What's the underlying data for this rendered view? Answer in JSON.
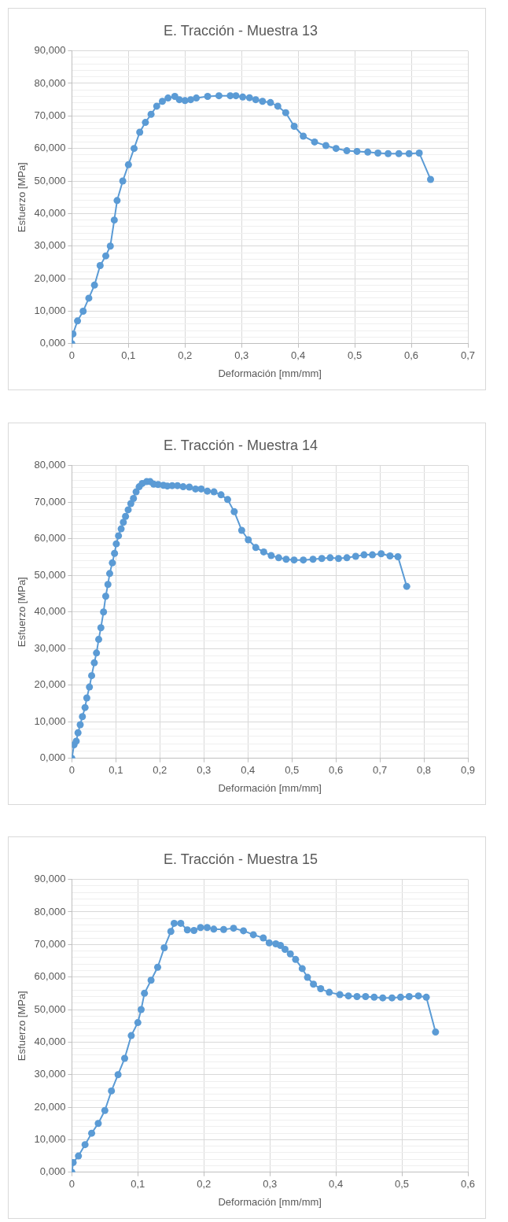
{
  "chart_data": [
    {
      "type": "line",
      "title": "E. Tracción - Muestra 13",
      "xlabel": "Deformación [mm/mm]",
      "ylabel": "Esfuerzo [MPa]",
      "marker": "circle",
      "grid": true,
      "legend": false,
      "xlim": [
        0,
        0.7
      ],
      "xticks": [
        {
          "value": 0,
          "label": "0"
        },
        {
          "value": 0.1,
          "label": "0,1"
        },
        {
          "value": 0.2,
          "label": "0,2"
        },
        {
          "value": 0.3,
          "label": "0,3"
        },
        {
          "value": 0.4,
          "label": "0,4"
        },
        {
          "value": 0.5,
          "label": "0,5"
        },
        {
          "value": 0.6,
          "label": "0,6"
        },
        {
          "value": 0.7,
          "label": "0,7"
        }
      ],
      "ylim": [
        0,
        90
      ],
      "yticks": [
        {
          "value": 0,
          "label": "0,000"
        },
        {
          "value": 2,
          "label": null
        },
        {
          "value": 4,
          "label": null
        },
        {
          "value": 6,
          "label": null
        },
        {
          "value": 8,
          "label": null
        },
        {
          "value": 10,
          "label": "10,000"
        },
        {
          "value": 12,
          "label": null
        },
        {
          "value": 14,
          "label": null
        },
        {
          "value": 16,
          "label": null
        },
        {
          "value": 18,
          "label": null
        },
        {
          "value": 20,
          "label": "20,000"
        },
        {
          "value": 22,
          "label": null
        },
        {
          "value": 24,
          "label": null
        },
        {
          "value": 26,
          "label": null
        },
        {
          "value": 28,
          "label": null
        },
        {
          "value": 30,
          "label": "30,000"
        },
        {
          "value": 32,
          "label": null
        },
        {
          "value": 34,
          "label": null
        },
        {
          "value": 36,
          "label": null
        },
        {
          "value": 38,
          "label": null
        },
        {
          "value": 40,
          "label": "40,000"
        },
        {
          "value": 42,
          "label": null
        },
        {
          "value": 44,
          "label": null
        },
        {
          "value": 46,
          "label": null
        },
        {
          "value": 48,
          "label": null
        },
        {
          "value": 50,
          "label": "50,000"
        },
        {
          "value": 52,
          "label": null
        },
        {
          "value": 54,
          "label": null
        },
        {
          "value": 56,
          "label": null
        },
        {
          "value": 58,
          "label": null
        },
        {
          "value": 60,
          "label": "60,000"
        },
        {
          "value": 62,
          "label": null
        },
        {
          "value": 64,
          "label": null
        },
        {
          "value": 66,
          "label": null
        },
        {
          "value": 68,
          "label": null
        },
        {
          "value": 70,
          "label": "70,000"
        },
        {
          "value": 72,
          "label": null
        },
        {
          "value": 74,
          "label": null
        },
        {
          "value": 76,
          "label": null
        },
        {
          "value": 78,
          "label": null
        },
        {
          "value": 80,
          "label": "80,000"
        },
        {
          "value": 82,
          "label": null
        },
        {
          "value": 84,
          "label": null
        },
        {
          "value": 86,
          "label": null
        },
        {
          "value": 88,
          "label": null
        },
        {
          "value": 90,
          "label": "90,000"
        }
      ],
      "series": [
        {
          "color": "#5b9bd5",
          "x": [
            0,
            0.002,
            0.01,
            0.02,
            0.03,
            0.04,
            0.05,
            0.06,
            0.068,
            0.075,
            0.08,
            0.09,
            0.1,
            0.11,
            0.12,
            0.13,
            0.14,
            0.15,
            0.16,
            0.17,
            0.182,
            0.19,
            0.2,
            0.21,
            0.22,
            0.24,
            0.26,
            0.28,
            0.29,
            0.302,
            0.314,
            0.325,
            0.337,
            0.351,
            0.364,
            0.378,
            0.393,
            0.409,
            0.429,
            0.449,
            0.467,
            0.486,
            0.504,
            0.523,
            0.541,
            0.559,
            0.578,
            0.596,
            0.614,
            0.634
          ],
          "values": [
            0,
            3,
            7,
            10,
            14,
            18,
            24,
            27,
            30,
            38,
            44,
            50,
            55,
            60,
            65,
            68,
            70.5,
            73,
            74.5,
            75.5,
            76,
            75,
            74.7,
            75,
            75.5,
            76,
            76.2,
            76.2,
            76.2,
            75.8,
            75.6,
            75,
            74.5,
            74.1,
            73,
            71,
            66.8,
            63.8,
            62,
            60.9,
            60,
            59.3,
            59.1,
            58.9,
            58.6,
            58.4,
            58.4,
            58.4,
            58.6,
            50.5
          ]
        }
      ]
    },
    {
      "type": "line",
      "title": "E. Tracción - Muestra 14",
      "xlabel": "Deformación [mm/mm]",
      "ylabel": "Esfuerzo [MPa]",
      "marker": "circle",
      "grid": true,
      "legend": false,
      "xlim": [
        0,
        0.9
      ],
      "xticks": [
        {
          "value": 0,
          "label": "0"
        },
        {
          "value": 0.1,
          "label": "0,1"
        },
        {
          "value": 0.2,
          "label": "0,2"
        },
        {
          "value": 0.3,
          "label": "0,3"
        },
        {
          "value": 0.4,
          "label": "0,4"
        },
        {
          "value": 0.5,
          "label": "0,5"
        },
        {
          "value": 0.6,
          "label": "0,6"
        },
        {
          "value": 0.7,
          "label": "0,7"
        },
        {
          "value": 0.8,
          "label": "0,8"
        },
        {
          "value": 0.9,
          "label": "0,9"
        }
      ],
      "ylim": [
        0,
        80
      ],
      "yticks": [
        {
          "value": 0,
          "label": "0,000"
        },
        {
          "value": 2,
          "label": null
        },
        {
          "value": 4,
          "label": null
        },
        {
          "value": 6,
          "label": null
        },
        {
          "value": 8,
          "label": null
        },
        {
          "value": 10,
          "label": "10,000"
        },
        {
          "value": 12,
          "label": null
        },
        {
          "value": 14,
          "label": null
        },
        {
          "value": 16,
          "label": null
        },
        {
          "value": 18,
          "label": null
        },
        {
          "value": 20,
          "label": "20,000"
        },
        {
          "value": 22,
          "label": null
        },
        {
          "value": 24,
          "label": null
        },
        {
          "value": 26,
          "label": null
        },
        {
          "value": 28,
          "label": null
        },
        {
          "value": 30,
          "label": "30,000"
        },
        {
          "value": 32,
          "label": null
        },
        {
          "value": 34,
          "label": null
        },
        {
          "value": 36,
          "label": null
        },
        {
          "value": 38,
          "label": null
        },
        {
          "value": 40,
          "label": "40,000"
        },
        {
          "value": 42,
          "label": null
        },
        {
          "value": 44,
          "label": null
        },
        {
          "value": 46,
          "label": null
        },
        {
          "value": 48,
          "label": null
        },
        {
          "value": 50,
          "label": "50,000"
        },
        {
          "value": 52,
          "label": null
        },
        {
          "value": 54,
          "label": null
        },
        {
          "value": 56,
          "label": null
        },
        {
          "value": 58,
          "label": null
        },
        {
          "value": 60,
          "label": "60,000"
        },
        {
          "value": 62,
          "label": null
        },
        {
          "value": 64,
          "label": null
        },
        {
          "value": 66,
          "label": null
        },
        {
          "value": 68,
          "label": null
        },
        {
          "value": 70,
          "label": "70,000"
        },
        {
          "value": 72,
          "label": null
        },
        {
          "value": 74,
          "label": null
        },
        {
          "value": 76,
          "label": null
        },
        {
          "value": 78,
          "label": null
        },
        {
          "value": 80,
          "label": "80,000"
        }
      ],
      "series": [
        {
          "color": "#5b9bd5",
          "x": [
            0,
            0.005,
            0.01,
            0.014,
            0.019,
            0.024,
            0.03,
            0.034,
            0.04,
            0.045,
            0.051,
            0.056,
            0.061,
            0.066,
            0.072,
            0.077,
            0.082,
            0.086,
            0.092,
            0.097,
            0.101,
            0.106,
            0.112,
            0.117,
            0.122,
            0.128,
            0.134,
            0.14,
            0.146,
            0.153,
            0.16,
            0.17,
            0.178,
            0.186,
            0.196,
            0.208,
            0.217,
            0.228,
            0.24,
            0.253,
            0.267,
            0.281,
            0.294,
            0.308,
            0.323,
            0.339,
            0.354,
            0.369,
            0.386,
            0.401,
            0.418,
            0.436,
            0.453,
            0.47,
            0.487,
            0.505,
            0.526,
            0.548,
            0.568,
            0.587,
            0.606,
            0.625,
            0.645,
            0.664,
            0.683,
            0.703,
            0.723,
            0.741,
            0.761
          ],
          "values": [
            0,
            3.7,
            4.7,
            7,
            9.2,
            11.4,
            13.9,
            16.5,
            19.5,
            22.6,
            26.1,
            28.8,
            32.5,
            35.7,
            40,
            44.3,
            47.5,
            50.5,
            53.4,
            56,
            58.6,
            60.8,
            62.7,
            64.5,
            66.1,
            67.9,
            69.6,
            71,
            72.8,
            74.2,
            75.1,
            75.6,
            75.6,
            74.9,
            74.8,
            74.6,
            74.4,
            74.5,
            74.5,
            74.2,
            74.1,
            73.6,
            73.6,
            73,
            72.8,
            72,
            70.7,
            67.4,
            62.3,
            59.7,
            57.6,
            56.4,
            55.4,
            54.8,
            54.4,
            54.2,
            54.2,
            54.4,
            54.6,
            54.8,
            54.6,
            54.8,
            55.2,
            55.6,
            55.6,
            55.9,
            55.3,
            55.1,
            47
          ]
        }
      ]
    },
    {
      "type": "line",
      "title": "E. Tracción - Muestra 15",
      "xlabel": "Deformación [mm/mm]",
      "ylabel": "Esfuerzo [MPa]",
      "marker": "circle",
      "grid": true,
      "legend": false,
      "xlim": [
        0,
        0.6
      ],
      "xticks": [
        {
          "value": 0,
          "label": "0"
        },
        {
          "value": 0.1,
          "label": "0,1"
        },
        {
          "value": 0.2,
          "label": "0,2"
        },
        {
          "value": 0.3,
          "label": "0,3"
        },
        {
          "value": 0.4,
          "label": "0,4"
        },
        {
          "value": 0.5,
          "label": "0,5"
        },
        {
          "value": 0.6,
          "label": "0,6"
        }
      ],
      "ylim": [
        0,
        90
      ],
      "yticks": [
        {
          "value": 0,
          "label": "0,000"
        },
        {
          "value": 2,
          "label": null
        },
        {
          "value": 4,
          "label": null
        },
        {
          "value": 6,
          "label": null
        },
        {
          "value": 8,
          "label": null
        },
        {
          "value": 10,
          "label": "10,000"
        },
        {
          "value": 12,
          "label": null
        },
        {
          "value": 14,
          "label": null
        },
        {
          "value": 16,
          "label": null
        },
        {
          "value": 18,
          "label": null
        },
        {
          "value": 20,
          "label": "20,000"
        },
        {
          "value": 22,
          "label": null
        },
        {
          "value": 24,
          "label": null
        },
        {
          "value": 26,
          "label": null
        },
        {
          "value": 28,
          "label": null
        },
        {
          "value": 30,
          "label": "30,000"
        },
        {
          "value": 32,
          "label": null
        },
        {
          "value": 34,
          "label": null
        },
        {
          "value": 36,
          "label": null
        },
        {
          "value": 38,
          "label": null
        },
        {
          "value": 40,
          "label": "40,000"
        },
        {
          "value": 42,
          "label": null
        },
        {
          "value": 44,
          "label": null
        },
        {
          "value": 46,
          "label": null
        },
        {
          "value": 48,
          "label": null
        },
        {
          "value": 50,
          "label": "50,000"
        },
        {
          "value": 52,
          "label": null
        },
        {
          "value": 54,
          "label": null
        },
        {
          "value": 56,
          "label": null
        },
        {
          "value": 58,
          "label": null
        },
        {
          "value": 60,
          "label": "60,000"
        },
        {
          "value": 62,
          "label": null
        },
        {
          "value": 64,
          "label": null
        },
        {
          "value": 66,
          "label": null
        },
        {
          "value": 68,
          "label": null
        },
        {
          "value": 70,
          "label": "70,000"
        },
        {
          "value": 72,
          "label": null
        },
        {
          "value": 74,
          "label": null
        },
        {
          "value": 76,
          "label": null
        },
        {
          "value": 78,
          "label": null
        },
        {
          "value": 80,
          "label": "80,000"
        },
        {
          "value": 82,
          "label": null
        },
        {
          "value": 84,
          "label": null
        },
        {
          "value": 86,
          "label": null
        },
        {
          "value": 88,
          "label": null
        },
        {
          "value": 90,
          "label": "90,000"
        }
      ],
      "series": [
        {
          "color": "#5b9bd5",
          "x": [
            0,
            0.002,
            0.01,
            0.02,
            0.03,
            0.04,
            0.05,
            0.06,
            0.07,
            0.08,
            0.09,
            0.1,
            0.105,
            0.11,
            0.12,
            0.13,
            0.14,
            0.15,
            0.155,
            0.165,
            0.175,
            0.185,
            0.195,
            0.205,
            0.215,
            0.23,
            0.245,
            0.26,
            0.275,
            0.29,
            0.299,
            0.309,
            0.316,
            0.323,
            0.331,
            0.339,
            0.349,
            0.357,
            0.366,
            0.377,
            0.39,
            0.406,
            0.419,
            0.432,
            0.445,
            0.458,
            0.471,
            0.485,
            0.498,
            0.511,
            0.525,
            0.537,
            0.551
          ],
          "values": [
            0,
            3,
            5,
            8.5,
            12,
            15,
            19,
            25,
            30,
            35,
            42,
            46,
            50,
            55,
            59,
            63,
            69,
            74,
            76.5,
            76.5,
            74.5,
            74.3,
            75.2,
            75.2,
            74.7,
            74.6,
            75,
            74.2,
            73,
            72,
            70.5,
            70.2,
            69.7,
            68.5,
            67.1,
            65.4,
            62.6,
            59.9,
            57.8,
            56.4,
            55.3,
            54.6,
            54.2,
            54,
            54,
            53.8,
            53.6,
            53.6,
            53.8,
            54,
            54.2,
            53.8,
            43.1
          ]
        }
      ]
    }
  ]
}
